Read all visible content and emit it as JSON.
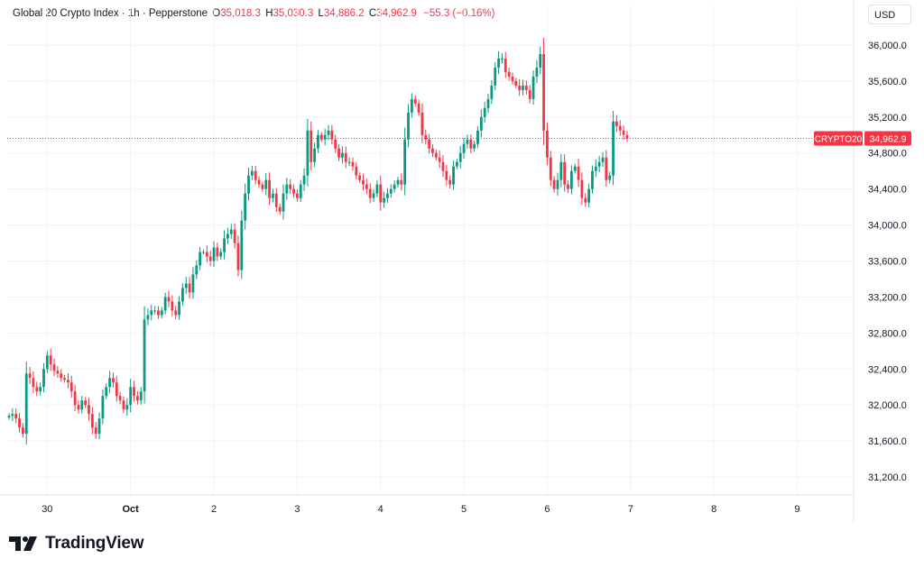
{
  "header": {
    "symbol_title": "Global 20 Crypto Index · 1h · Pepperstone",
    "o_label": "O",
    "o_value": "35,018.3",
    "h_label": "H",
    "h_value": "35,030.3",
    "l_label": "L",
    "l_value": "34,886.2",
    "c_label": "C",
    "c_value": "34,962.9",
    "change": "−55.3 (−0.16%)"
  },
  "currency_label": "USD",
  "price_tag": {
    "symbol": "CRYPTO20",
    "value": "34,962.9"
  },
  "branding": "TradingView",
  "colors": {
    "up": "#089981",
    "down": "#f23645",
    "grid": "#f0f3fa",
    "text": "#131722"
  },
  "chart_data": {
    "type": "candlestick",
    "title": "Global 20 Crypto Index",
    "ylim": [
      31000,
      36200
    ],
    "y_ticks": [
      {
        "value": 31200,
        "label": "31,200.0"
      },
      {
        "value": 31600,
        "label": "31,600.0"
      },
      {
        "value": 32000,
        "label": "32,000.0"
      },
      {
        "value": 32400,
        "label": "32,400.0"
      },
      {
        "value": 32800,
        "label": "32,800.0"
      },
      {
        "value": 33200,
        "label": "33,200.0"
      },
      {
        "value": 33600,
        "label": "33,600.0"
      },
      {
        "value": 34000,
        "label": "34,000.0"
      },
      {
        "value": 34400,
        "label": "34,400.0"
      },
      {
        "value": 34800,
        "label": "34,800.0"
      },
      {
        "value": 35200,
        "label": "35,200.0"
      },
      {
        "value": 35600,
        "label": "35,600.0"
      },
      {
        "value": 36000,
        "label": "36,000.0"
      }
    ],
    "x_ticks": [
      {
        "bar": 11,
        "label": "30"
      },
      {
        "bar": 35,
        "label": "Oct"
      },
      {
        "bar": 59,
        "label": "2"
      },
      {
        "bar": 83,
        "label": "3"
      },
      {
        "bar": 107,
        "label": "4"
      },
      {
        "bar": 131,
        "label": "5"
      },
      {
        "bar": 155,
        "label": "6"
      },
      {
        "bar": 179,
        "label": "7"
      },
      {
        "bar": 203,
        "label": "8"
      },
      {
        "bar": 227,
        "label": "9"
      }
    ],
    "last_price": 34962.9,
    "closes": [
      31880,
      31900,
      31850,
      31750,
      31680,
      32350,
      32300,
      32200,
      32150,
      32200,
      32400,
      32550,
      32450,
      32380,
      32350,
      32300,
      32280,
      32250,
      32150,
      32000,
      31950,
      32050,
      32000,
      31900,
      31750,
      31680,
      31850,
      32100,
      32200,
      32300,
      32250,
      32100,
      32050,
      31950,
      32000,
      32200,
      32100,
      32050,
      32150,
      32950,
      33000,
      33050,
      33050,
      33000,
      33050,
      33200,
      33150,
      33050,
      33000,
      33150,
      33300,
      33350,
      33250,
      33450,
      33550,
      33700,
      33700,
      33650,
      33600,
      33750,
      33650,
      33700,
      33850,
      33900,
      33950,
      33800,
      33500,
      34050,
      34350,
      34550,
      34600,
      34500,
      34450,
      34400,
      34500,
      34300,
      34350,
      34200,
      34150,
      34350,
      34450,
      34400,
      34350,
      34300,
      34450,
      34550,
      35050,
      34700,
      34850,
      35000,
      34950,
      35000,
      35050,
      34950,
      34850,
      34750,
      34800,
      34700,
      34700,
      34650,
      34550,
      34500,
      34450,
      34400,
      34300,
      34350,
      34450,
      34250,
      34300,
      34350,
      34400,
      34450,
      34500,
      34450,
      34950,
      35250,
      35400,
      35350,
      35250,
      35000,
      34950,
      34850,
      34800,
      34750,
      34700,
      34600,
      34500,
      34450,
      34650,
      34700,
      34800,
      34900,
      34950,
      34850,
      34900,
      35050,
      35200,
      35300,
      35400,
      35550,
      35750,
      35850,
      35850,
      35700,
      35650,
      35600,
      35550,
      35500,
      35550,
      35500,
      35400,
      35650,
      35750,
      35900,
      35050,
      34750,
      34500,
      34400,
      34500,
      34700,
      34450,
      34400,
      34600,
      34650,
      34500,
      34300,
      34250,
      34400,
      34600,
      34650,
      34700,
      34750,
      34500,
      34550,
      35150,
      35100,
      35050,
      35000,
      34963
    ]
  }
}
